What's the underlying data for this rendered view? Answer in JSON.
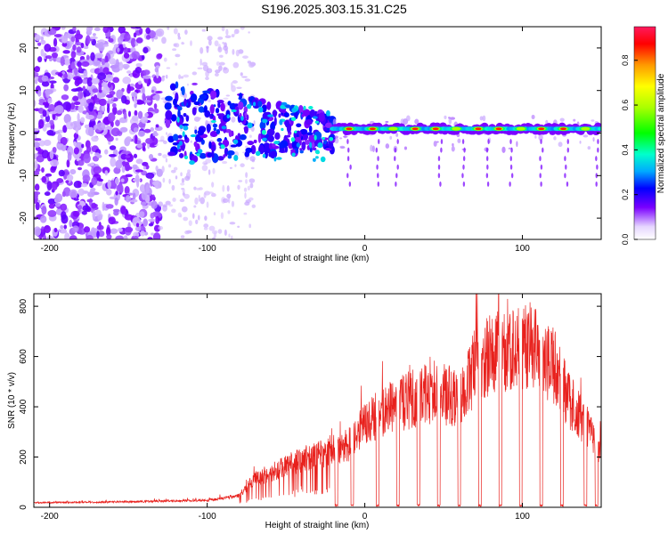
{
  "title": "S196.2025.303.15.31.C25",
  "colors": {
    "snr_line": "#e8201c",
    "spectral_low": "#e6d6ff",
    "spectral_mid": "#7a00ff",
    "spectral_high": "#ff1a4b"
  },
  "chart_data": [
    {
      "type": "heatmap",
      "title": "S196.2025.303.15.31.C25",
      "xlabel": "Height of straight line (km)",
      "ylabel": "Frequency (Hz)",
      "xlim": [
        -210,
        150
      ],
      "ylim": [
        -25,
        25
      ],
      "xticks": [
        -200,
        -100,
        0,
        100
      ],
      "yticks": [
        20,
        10,
        0,
        -10,
        -20
      ],
      "colorbar": {
        "label": "Normalized spectral amplitude",
        "range": [
          0,
          0.95
        ],
        "ticks": [
          0.0,
          0.2,
          0.4,
          0.6,
          0.8
        ]
      },
      "signal_track": {
        "frequency_hz": 1,
        "x_start_km": -20,
        "x_end_km": 150
      }
    },
    {
      "type": "line",
      "xlabel": "Height of straight line (km)",
      "ylabel": "SNR (10 * v/v)",
      "xlim": [
        -210,
        150
      ],
      "ylim": [
        0,
        850
      ],
      "xticks": [
        -200,
        -100,
        0,
        100
      ],
      "yticks": [
        0,
        200,
        400,
        600,
        800
      ],
      "envelope": {
        "x": [
          -210,
          -150,
          -100,
          -80,
          -70,
          -55,
          -40,
          -20,
          -10,
          0,
          15,
          30,
          45,
          60,
          70,
          80,
          90,
          100,
          110,
          120,
          130,
          140,
          150
        ],
        "y": [
          18,
          22,
          28,
          45,
          110,
          150,
          190,
          230,
          250,
          330,
          390,
          430,
          460,
          430,
          560,
          610,
          620,
          640,
          620,
          560,
          420,
          330,
          230
        ]
      },
      "dropouts_km": [
        -18,
        -8,
        8,
        21,
        34,
        47,
        60,
        73,
        86,
        99,
        112,
        125,
        140,
        147
      ]
    }
  ]
}
